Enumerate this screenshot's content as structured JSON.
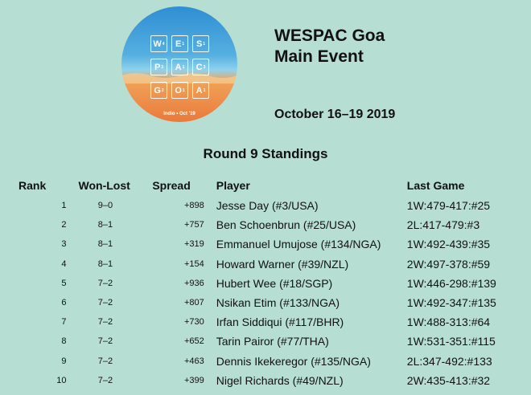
{
  "logo": {
    "tiles": [
      {
        "letter": "W",
        "score": "4"
      },
      {
        "letter": "E",
        "score": "1"
      },
      {
        "letter": "S",
        "score": "1"
      },
      {
        "letter": "P",
        "score": "3"
      },
      {
        "letter": "A",
        "score": "1"
      },
      {
        "letter": "C",
        "score": "3"
      },
      {
        "letter": "G",
        "score": "2"
      },
      {
        "letter": "O",
        "score": "1"
      },
      {
        "letter": "A",
        "score": "1"
      }
    ],
    "caption": "Indio • Oct '19",
    "colors": {
      "sky": "#3a98d8",
      "sand": "#ec8a45"
    }
  },
  "event": {
    "title_line1": "WESPAC Goa",
    "title_line2": "Main Event",
    "date": "October 16–19 2019"
  },
  "standings": {
    "heading": "Round 9 Standings",
    "columns": {
      "rank": "Rank",
      "won_lost": "Won-Lost",
      "spread": "Spread",
      "player": "Player",
      "last_game": "Last Game"
    },
    "rows": [
      {
        "rank": "1",
        "wl": "9–0",
        "spread": "+898",
        "player": "Jesse Day (#3/USA)",
        "last": "1W:479-417:#25"
      },
      {
        "rank": "2",
        "wl": "8–1",
        "spread": "+757",
        "player": "Ben Schoenbrun (#25/USA)",
        "last": "2L:417-479:#3"
      },
      {
        "rank": "3",
        "wl": "8–1",
        "spread": "+319",
        "player": "Emmanuel Umujose (#134/NGA)",
        "last": "1W:492-439:#35"
      },
      {
        "rank": "4",
        "wl": "8–1",
        "spread": "+154",
        "player": "Howard Warner (#39/NZL)",
        "last": "2W:497-378:#59"
      },
      {
        "rank": "5",
        "wl": "7–2",
        "spread": "+936",
        "player": "Hubert Wee (#18/SGP)",
        "last": "1W:446-298:#139"
      },
      {
        "rank": "6",
        "wl": "7–2",
        "spread": "+807",
        "player": "Nsikan Etim (#133/NGA)",
        "last": "1W:492-347:#135"
      },
      {
        "rank": "7",
        "wl": "7–2",
        "spread": "+730",
        "player": "Irfan Siddiqui (#117/BHR)",
        "last": "1W:488-313:#64"
      },
      {
        "rank": "8",
        "wl": "7–2",
        "spread": "+652",
        "player": "Tarin Pairor (#77/THA)",
        "last": "1W:531-351:#115"
      },
      {
        "rank": "9",
        "wl": "7–2",
        "spread": "+463",
        "player": "Dennis Ikekeregor (#135/NGA)",
        "last": "2L:347-492:#133"
      },
      {
        "rank": "10",
        "wl": "7–2",
        "spread": "+399",
        "player": "Nigel Richards (#49/NZL)",
        "last": "2W:435-413:#32"
      }
    ]
  }
}
